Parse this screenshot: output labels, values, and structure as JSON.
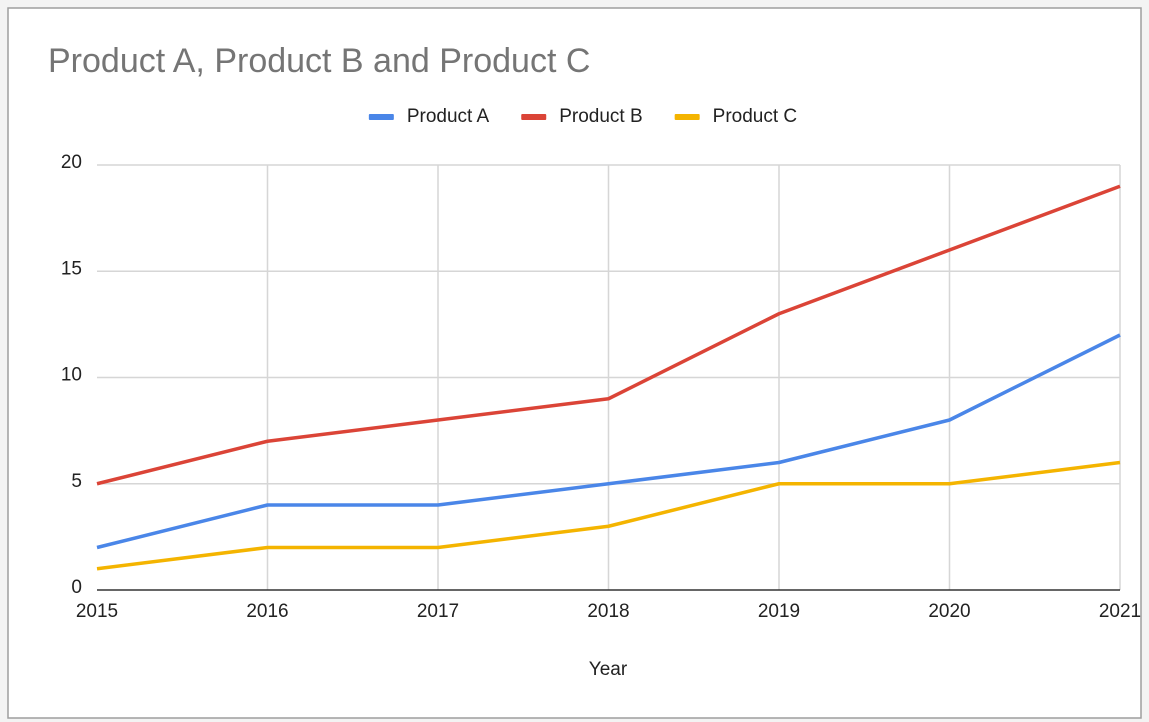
{
  "chart_data": {
    "type": "line",
    "title": "Product A, Product B and Product C",
    "x": [
      2015,
      2016,
      2017,
      2018,
      2019,
      2020,
      2021
    ],
    "series": [
      {
        "name": "Product A",
        "color": "#4a86e8",
        "values": [
          2,
          4,
          4,
          5,
          6,
          8,
          12
        ]
      },
      {
        "name": "Product B",
        "color": "#db4437",
        "values": [
          5,
          7,
          8,
          9,
          13,
          16,
          19
        ]
      },
      {
        "name": "Product C",
        "color": "#f4b400",
        "values": [
          1,
          2,
          2,
          3,
          5,
          5,
          6
        ]
      }
    ],
    "xlabel": "Year",
    "xlim": [
      2015,
      2021
    ],
    "xticks": [
      2015,
      2016,
      2017,
      2018,
      2019,
      2020,
      2021
    ],
    "ylim": [
      0,
      20
    ],
    "yticks": [
      0,
      5,
      10,
      15,
      20
    ],
    "grid": true,
    "legend": "top"
  }
}
